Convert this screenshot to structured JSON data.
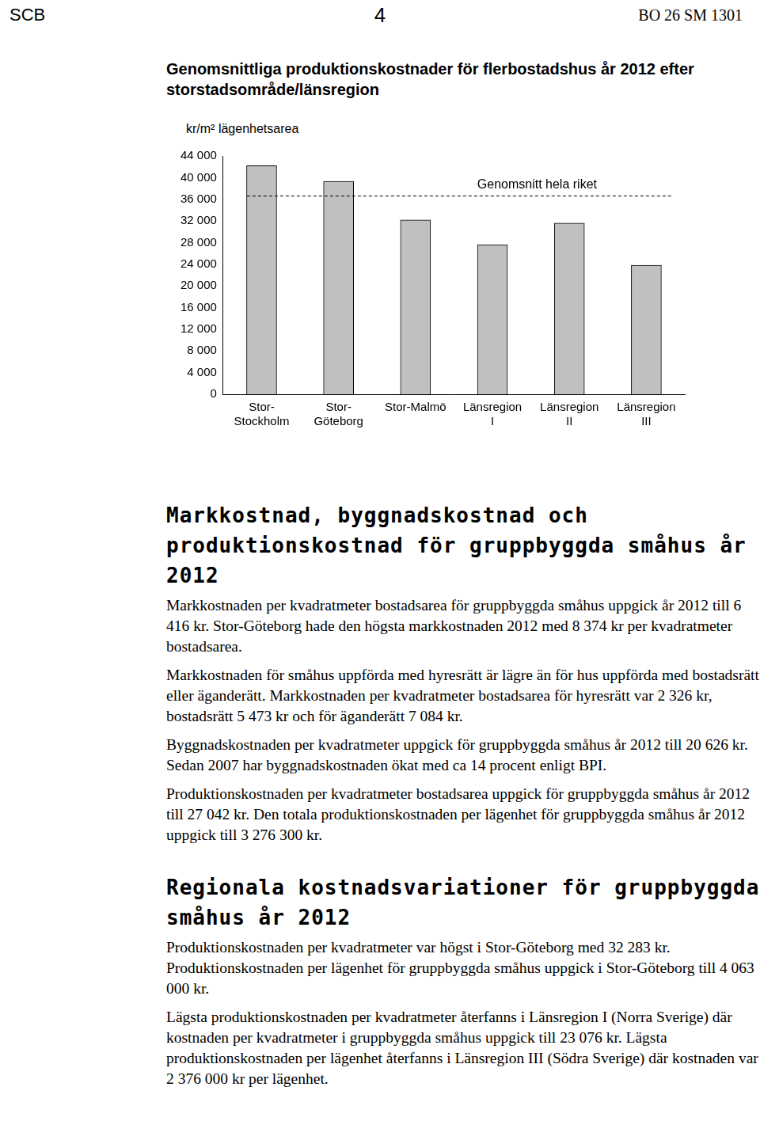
{
  "header": {
    "left": "SCB",
    "page": "4",
    "right": "BO 26 SM 1301"
  },
  "chart_data": {
    "type": "bar",
    "title": "Genomsnittliga produktionskostnader för flerbostadshus år 2012 efter storstadsområde/länsregion",
    "y_label": "kr/m² lägenhetsarea",
    "categories": [
      [
        "Stor-",
        "Stockholm"
      ],
      [
        "Stor-",
        "Göteborg"
      ],
      [
        "Stor-Malmö"
      ],
      [
        "Länsregion",
        "I"
      ],
      [
        "Länsregion",
        "II"
      ],
      [
        "Länsregion",
        "III"
      ]
    ],
    "values": [
      42200,
      39300,
      32200,
      27600,
      31600,
      23800
    ],
    "color": "#c0c0c0",
    "ylim": [
      0,
      44000
    ],
    "yticks": [
      0,
      {
        "value": 4000,
        "label": "4 000"
      },
      {
        "value": 8000,
        "label": "8 000"
      },
      {
        "value": 12000,
        "label": "12 000"
      },
      {
        "value": 16000,
        "label": "16 000"
      },
      {
        "value": 20000,
        "label": "20 000"
      },
      {
        "value": 24000,
        "label": "24 000"
      },
      {
        "value": 28000,
        "label": "28 000"
      },
      {
        "value": 32000,
        "label": "32 000"
      },
      {
        "value": 36000,
        "label": "36 000"
      },
      {
        "value": 40000,
        "label": "40 000"
      },
      {
        "value": 44000,
        "label": "44 000"
      }
    ],
    "grid": false,
    "reference_line": {
      "label": "Genomsnitt hela riket",
      "value": 36600
    }
  },
  "sections": [
    {
      "heading": "Markkostnad, byggnadskostnad och produktionskostnad för gruppbyggda småhus år 2012",
      "paragraphs": [
        "Markkostnaden per kvadratmeter bostadsarea för gruppbyggda småhus uppgick år 2012 till 6 416 kr. Stor-Göteborg hade den högsta markkostnaden 2012 med 8 374 kr per kvadratmeter bostadsarea.",
        "Markkostnaden för småhus uppförda med hyresrätt är lägre än för hus uppförda med bostadsrätt eller äganderätt. Markkostnaden per kvadratmeter bostadsarea för hyresrätt var 2 326 kr, bostadsrätt 5 473 kr och för äganderätt 7 084 kr.",
        "Byggnadskostnaden per kvadratmeter uppgick för gruppbyggda småhus år 2012 till 20 626 kr. Sedan 2007 har byggnadskostnaden ökat med ca 14 procent enligt BPI.",
        "Produktionskostnaden per kvadratmeter bostadsarea uppgick för gruppbyggda småhus år 2012 till 27 042 kr. Den totala produktionskostnaden per lägenhet för gruppbyggda småhus år 2012 uppgick till 3 276 300 kr."
      ]
    },
    {
      "heading": "Regionala kostnadsvariationer för gruppbyggda småhus år 2012",
      "paragraphs": [
        "Produktionskostnaden per kvadratmeter var högst i Stor-Göteborg med 32 283 kr. Produktionskostnaden per lägenhet för gruppbyggda småhus uppgick i Stor-Göteborg till 4 063 000 kr.",
        "Lägsta produktionskostnaden per kvadratmeter återfanns i Länsregion I (Norra Sverige) där kostnaden per kvadratmeter i gruppbyggda småhus uppgick till 23 076 kr. Lägsta produktionskostnaden per lägenhet återfanns i Länsregion III (Södra Sverige) där kostnaden var 2 376 000 kr per lägenhet."
      ]
    }
  ]
}
